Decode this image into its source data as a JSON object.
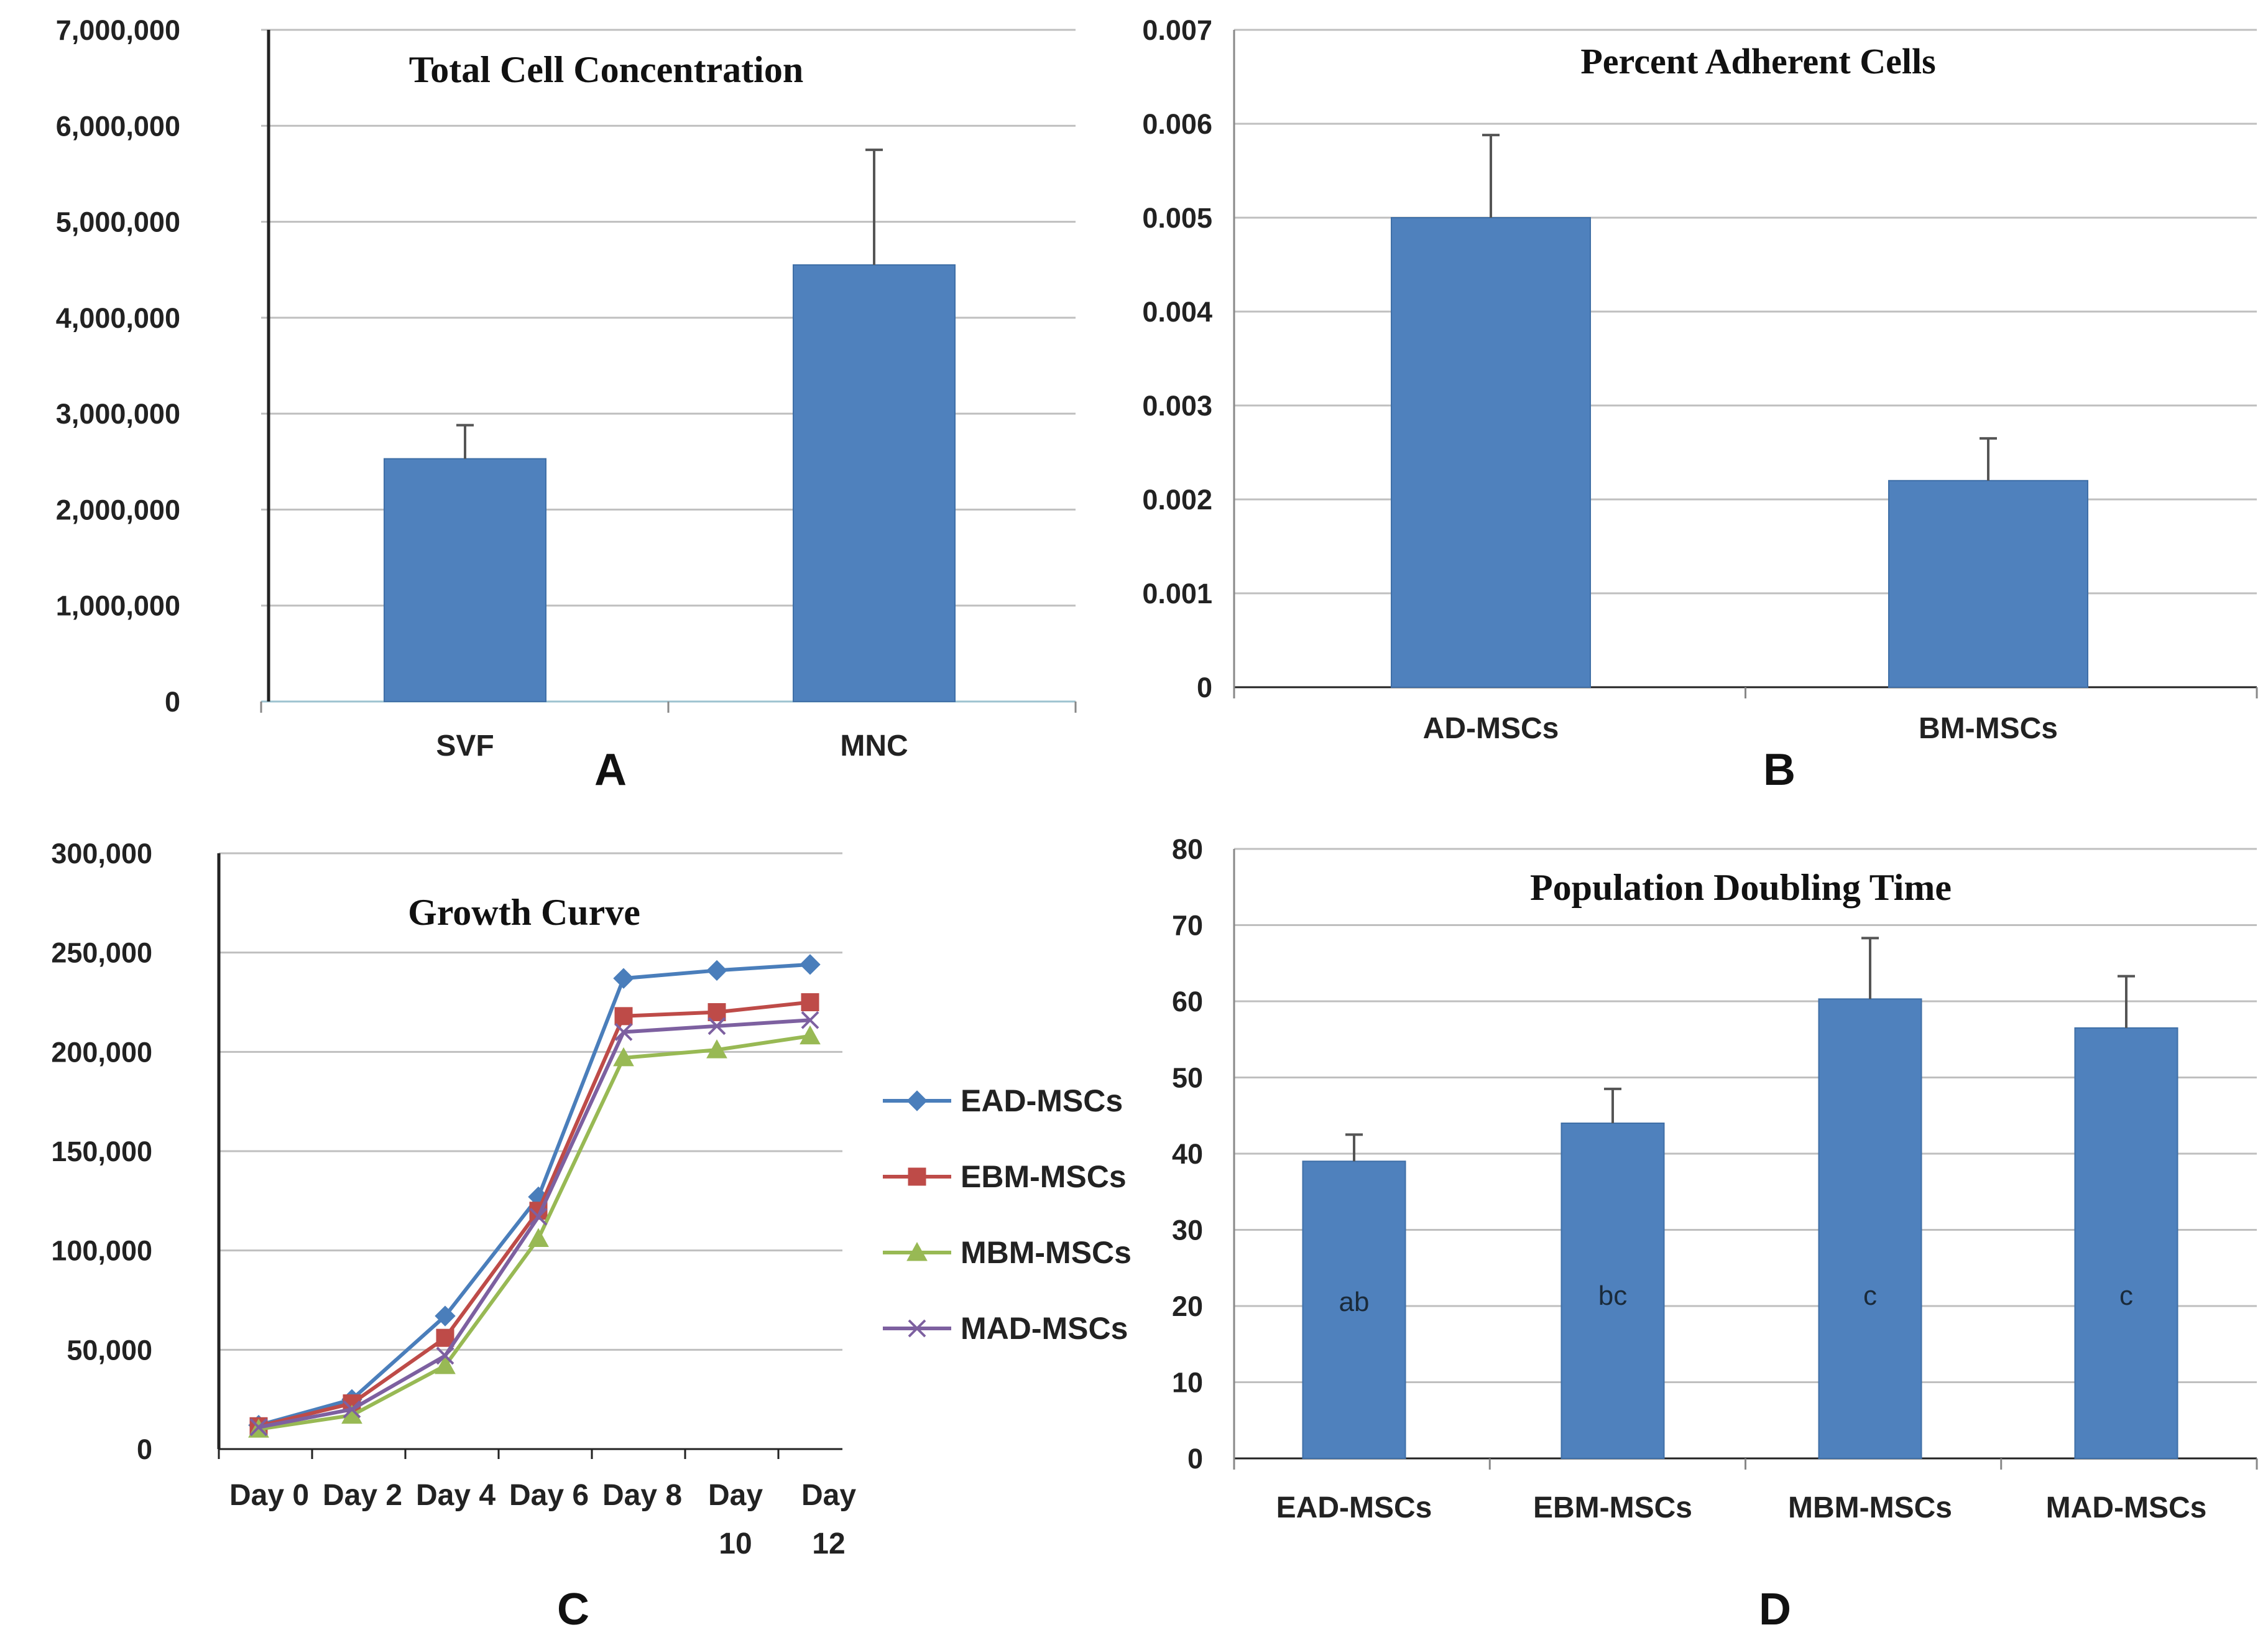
{
  "colors": {
    "bar": "#4f81bd",
    "bar_edge": "#3f6fa7",
    "grid": "#bfbfbf",
    "axis": "#222222",
    "errorbar": "#555555",
    "EAD-MSCs": "#4a7ebb",
    "EBM-MSCs": "#be4b48",
    "MBM-MSCs": "#98b954",
    "MAD-MSCs": "#7d60a0"
  },
  "chart_data": [
    {
      "id": "A",
      "panel_label": "A",
      "type": "bar",
      "title": "Total Cell Concentration",
      "categories": [
        "SVF",
        "MNC"
      ],
      "values": [
        2530000,
        4550000
      ],
      "errors": [
        350000,
        1200000
      ],
      "ylim": [
        0,
        7000000
      ],
      "yticks": [
        0,
        1000000,
        2000000,
        3000000,
        4000000,
        5000000,
        6000000,
        7000000
      ],
      "ytick_labels": [
        "0",
        "1,000,000",
        "2,000,000",
        "3,000,000",
        "4,000,000",
        "5,000,000",
        "6,000,000",
        "7,000,000"
      ],
      "xlabel": "",
      "ylabel": ""
    },
    {
      "id": "B",
      "panel_label": "B",
      "type": "bar",
      "title": "Percent Adherent Cells",
      "categories": [
        "AD-MSCs",
        "BM-MSCs"
      ],
      "values": [
        0.005,
        0.0022
      ],
      "errors": [
        0.00088,
        0.00045
      ],
      "ylim": [
        0,
        0.007
      ],
      "yticks": [
        0,
        0.001,
        0.002,
        0.003,
        0.004,
        0.005,
        0.006,
        0.007
      ],
      "ytick_labels": [
        "0",
        "0.001",
        "0.002",
        "0.003",
        "0.004",
        "0.005",
        "0.006",
        "0.007"
      ],
      "xlabel": "",
      "ylabel": ""
    },
    {
      "id": "C",
      "panel_label": "C",
      "type": "line",
      "title": "Growth Curve",
      "categories": [
        [
          "Day 0"
        ],
        [
          "Day 2"
        ],
        [
          "Day 4"
        ],
        [
          "Day 6"
        ],
        [
          "Day 8"
        ],
        [
          "Day",
          "10"
        ],
        [
          "Day",
          "12"
        ]
      ],
      "series": [
        {
          "name": "EAD-MSCs",
          "marker": "diamond",
          "values": [
            12000,
            25000,
            67000,
            127000,
            237000,
            241000,
            244000
          ]
        },
        {
          "name": "EBM-MSCs",
          "marker": "square",
          "values": [
            11500,
            23000,
            56000,
            120000,
            218000,
            220000,
            225000
          ]
        },
        {
          "name": "MBM-MSCs",
          "marker": "triangle",
          "values": [
            10000,
            17000,
            42000,
            106000,
            197000,
            201000,
            208000
          ]
        },
        {
          "name": "MAD-MSCs",
          "marker": "x",
          "values": [
            11000,
            20000,
            47000,
            117000,
            210000,
            213000,
            216000
          ]
        }
      ],
      "ylim": [
        0,
        300000
      ],
      "yticks": [
        0,
        50000,
        100000,
        150000,
        200000,
        250000,
        300000
      ],
      "ytick_labels": [
        "0",
        "50,000",
        "100,000",
        "150,000",
        "200,000",
        "250,000",
        "300,000"
      ],
      "xlabel": "",
      "ylabel": "",
      "legend_position": "right"
    },
    {
      "id": "D",
      "panel_label": "D",
      "type": "bar",
      "title": "Population Doubling Time",
      "categories": [
        "EAD-MSCs",
        "EBM-MSCs",
        "MBM-MSCs",
        "MAD-MSCs"
      ],
      "values": [
        39,
        44,
        60.3,
        56.5
      ],
      "errors": [
        3.5,
        4.5,
        8,
        6.8
      ],
      "bar_labels": [
        "ab",
        "bc",
        "c",
        "c"
      ],
      "ylim": [
        0,
        80
      ],
      "yticks": [
        0,
        10,
        20,
        30,
        40,
        50,
        60,
        70,
        80
      ],
      "ytick_labels": [
        "0",
        "10",
        "20",
        "30",
        "40",
        "50",
        "60",
        "70",
        "80"
      ],
      "xlabel": "",
      "ylabel": ""
    }
  ]
}
